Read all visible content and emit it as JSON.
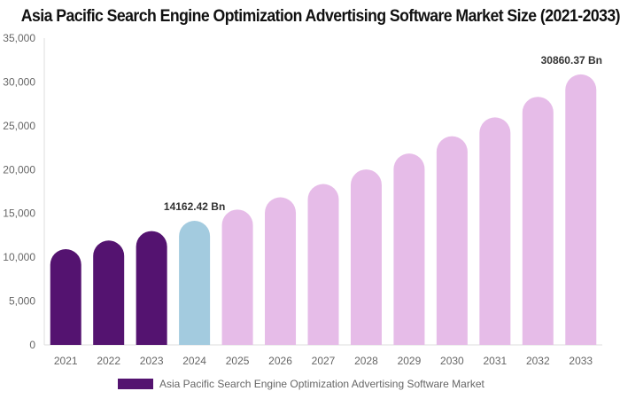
{
  "chart_data": {
    "type": "bar",
    "title": "Asia Pacific Search Engine Optimization Advertising Software Market Size (2021-2033)",
    "categories": [
      "2021",
      "2022",
      "2023",
      "2024",
      "2025",
      "2026",
      "2027",
      "2028",
      "2029",
      "2030",
      "2031",
      "2032",
      "2033"
    ],
    "series": [
      {
        "name": "Asia Pacific Search Engine Optimization Advertising Software Market",
        "values": [
          10923,
          11911,
          12988,
          14162.42,
          15443,
          16839,
          18361,
          20021,
          21831,
          23805,
          25957,
          28303,
          30860.37
        ]
      }
    ],
    "bar_colors": [
      "#541370",
      "#541370",
      "#541370",
      "#a3cbdf",
      "#e6bce8",
      "#e6bce8",
      "#e6bce8",
      "#e6bce8",
      "#e6bce8",
      "#e6bce8",
      "#e6bce8",
      "#e6bce8",
      "#e6bce8"
    ],
    "legend_color": "#541370",
    "data_labels": [
      {
        "category": "2024",
        "text": "14162.42 Bn"
      },
      {
        "category": "2033",
        "text": "30860.37 Bn"
      }
    ],
    "yticks": [
      "0",
      "5,000",
      "10,000",
      "15,000",
      "20,000",
      "25,000",
      "30,000",
      "35,000"
    ],
    "ylim": [
      0,
      35000
    ],
    "xlabel": "",
    "ylabel": "",
    "grid": false,
    "legend_position": "bottom"
  }
}
